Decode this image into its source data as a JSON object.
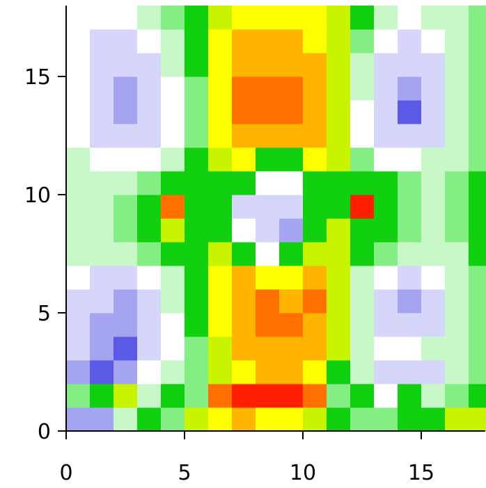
{
  "chart_data": {
    "type": "heatmap",
    "x_edges": [
      0,
      1,
      2,
      3,
      4,
      5,
      6,
      7,
      8,
      9,
      10,
      11,
      12,
      13,
      14,
      15,
      16,
      17,
      18
    ],
    "y_edges": [
      0,
      1,
      2,
      3,
      4,
      5,
      6,
      7,
      8,
      9,
      10,
      11,
      12,
      13,
      14,
      15,
      16,
      17,
      18
    ],
    "z": [
      [
        -2,
        -2,
        1,
        3,
        2,
        4,
        5,
        6,
        5,
        5,
        4,
        3,
        2,
        2,
        3,
        3,
        4,
        4
      ],
      [
        2,
        3,
        4,
        1,
        3,
        2,
        7,
        8,
        8,
        8,
        7,
        2,
        3,
        0,
        3,
        1,
        2,
        3
      ],
      [
        -2,
        -3,
        -2,
        0,
        1,
        2,
        4,
        5,
        6,
        6,
        5,
        3,
        1,
        -1,
        -1,
        -1,
        1,
        2
      ],
      [
        -1,
        -2,
        -3,
        -1,
        0,
        2,
        4,
        6,
        6,
        6,
        6,
        4,
        1,
        0,
        0,
        1,
        1,
        2
      ],
      [
        -1,
        -2,
        -2,
        -1,
        0,
        3,
        5,
        6,
        7,
        7,
        6,
        4,
        1,
        -1,
        -1,
        -1,
        1,
        2
      ],
      [
        -1,
        -1,
        -2,
        -1,
        1,
        3,
        5,
        6,
        7,
        6,
        7,
        4,
        1,
        -1,
        -2,
        -1,
        1,
        2
      ],
      [
        0,
        -1,
        -1,
        0,
        1,
        3,
        5,
        6,
        5,
        5,
        6,
        4,
        1,
        0,
        -1,
        0,
        1,
        2
      ],
      [
        1,
        1,
        1,
        2,
        3,
        3,
        4,
        3,
        0,
        3,
        4,
        4,
        3,
        2,
        1,
        1,
        1,
        3
      ],
      [
        1,
        1,
        2,
        3,
        4,
        3,
        3,
        0,
        -1,
        -2,
        3,
        4,
        3,
        3,
        2,
        1,
        2,
        3
      ],
      [
        1,
        1,
        2,
        3,
        7,
        3,
        3,
        -1,
        -1,
        -1,
        3,
        3,
        8,
        3,
        2,
        1,
        2,
        3
      ],
      [
        1,
        1,
        1,
        2,
        3,
        3,
        3,
        3,
        0,
        0,
        3,
        3,
        3,
        3,
        2,
        1,
        2,
        3
      ],
      [
        1,
        0,
        0,
        0,
        1,
        3,
        4,
        5,
        3,
        3,
        5,
        4,
        2,
        0,
        0,
        1,
        1,
        2
      ],
      [
        0,
        -1,
        -1,
        -1,
        0,
        2,
        5,
        6,
        6,
        6,
        6,
        4,
        0,
        -1,
        -1,
        -1,
        1,
        2
      ],
      [
        0,
        -1,
        -2,
        -1,
        0,
        2,
        5,
        7,
        7,
        7,
        6,
        4,
        0,
        -1,
        -3,
        -1,
        1,
        2
      ],
      [
        0,
        -1,
        -2,
        -1,
        0,
        2,
        5,
        7,
        7,
        7,
        6,
        4,
        1,
        -1,
        -2,
        -1,
        1,
        2
      ],
      [
        0,
        -1,
        -1,
        -1,
        1,
        3,
        5,
        6,
        6,
        6,
        6,
        4,
        1,
        -1,
        -1,
        -1,
        1,
        2
      ],
      [
        0,
        -1,
        -1,
        0,
        1,
        3,
        5,
        6,
        6,
        6,
        5,
        4,
        2,
        0,
        -1,
        0,
        1,
        2
      ],
      [
        0,
        0,
        0,
        1,
        2,
        3,
        4,
        5,
        5,
        5,
        5,
        4,
        3,
        1,
        0,
        1,
        1,
        2
      ]
    ],
    "color_levels": [
      {
        "value": -3,
        "color": "#5a5ae6"
      },
      {
        "value": -2,
        "color": "#a4a4f0"
      },
      {
        "value": -1,
        "color": "#d6d6fa"
      },
      {
        "value": 0,
        "color": "#ffffff"
      },
      {
        "value": 1,
        "color": "#c8f8c8"
      },
      {
        "value": 2,
        "color": "#84ee84"
      },
      {
        "value": 3,
        "color": "#10d010"
      },
      {
        "value": 4,
        "color": "#c8f400"
      },
      {
        "value": 5,
        "color": "#ffff00"
      },
      {
        "value": 6,
        "color": "#ffb400"
      },
      {
        "value": 7,
        "color": "#ff7000"
      },
      {
        "value": 8,
        "color": "#ff2000"
      }
    ],
    "xlim": [
      0,
      17.7
    ],
    "ylim": [
      0,
      18
    ],
    "xticks": [
      0,
      5,
      10,
      15
    ],
    "yticks": [
      0,
      5,
      10,
      15
    ]
  }
}
